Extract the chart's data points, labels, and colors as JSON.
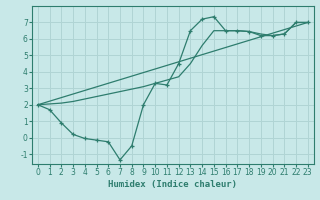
{
  "background_color": "#c8e8e8",
  "grid_color": "#b0d4d4",
  "line_color": "#2e7d6e",
  "xlabel": "Humidex (Indice chaleur)",
  "xlim": [
    -0.5,
    23.5
  ],
  "ylim": [
    -1.6,
    8.0
  ],
  "xticks": [
    0,
    1,
    2,
    3,
    4,
    5,
    6,
    7,
    8,
    9,
    10,
    11,
    12,
    13,
    14,
    15,
    16,
    17,
    18,
    19,
    20,
    21,
    22,
    23
  ],
  "yticks": [
    -1,
    0,
    1,
    2,
    3,
    4,
    5,
    6,
    7
  ],
  "wiggly_x": [
    0,
    1,
    2,
    3,
    4,
    5,
    6,
    7,
    8,
    9,
    10,
    11,
    12,
    13,
    14,
    15,
    16,
    17,
    18,
    19,
    20,
    21,
    22,
    23
  ],
  "wiggly_y": [
    2.0,
    1.7,
    0.9,
    0.2,
    -0.05,
    -0.15,
    -0.25,
    -1.35,
    -0.5,
    2.0,
    3.3,
    3.2,
    4.5,
    6.5,
    7.2,
    7.35,
    6.5,
    6.5,
    6.45,
    6.2,
    6.2,
    6.3,
    7.0,
    7.0
  ],
  "line2_x": [
    0,
    1,
    2,
    3,
    4,
    5,
    6,
    7,
    8,
    9,
    10,
    11,
    12,
    13,
    14,
    15,
    16,
    17,
    18,
    19,
    20,
    21,
    22,
    23
  ],
  "line2_y": [
    2.0,
    2.05,
    2.1,
    2.2,
    2.35,
    2.5,
    2.65,
    2.8,
    2.95,
    3.1,
    3.3,
    3.5,
    3.7,
    4.5,
    5.6,
    6.5,
    6.5,
    6.5,
    6.45,
    6.3,
    6.2,
    6.3,
    7.0,
    7.0
  ],
  "line3_x": [
    0,
    23
  ],
  "line3_y": [
    2.0,
    7.0
  ]
}
